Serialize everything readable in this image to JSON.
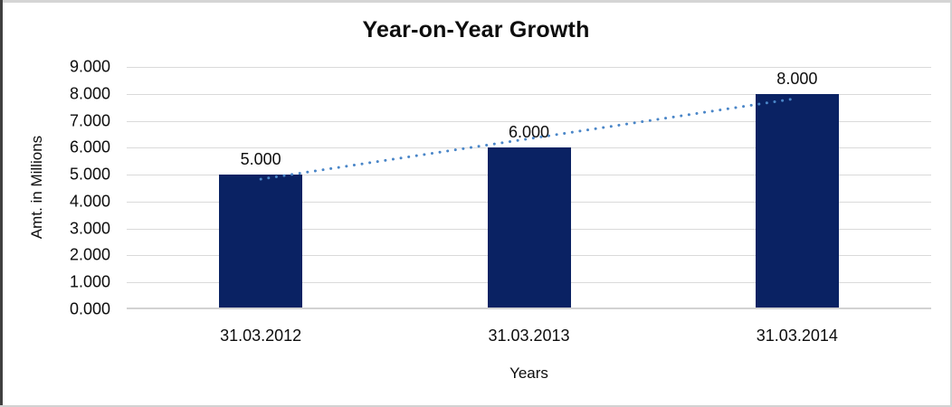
{
  "chart_data": {
    "type": "bar",
    "title": "Year-on-Year Growth",
    "xlabel": "Years",
    "ylabel": "Amt. in Millions",
    "categories": [
      "31.03.2012",
      "31.03.2013",
      "31.03.2014"
    ],
    "values": [
      5,
      6,
      8
    ],
    "value_labels": [
      "5.000",
      "6.000",
      "8.000"
    ],
    "ylim": [
      0,
      9
    ],
    "ytick_step": 1,
    "ytick_labels": [
      "0.000",
      "1.000",
      "2.000",
      "3.000",
      "4.000",
      "5.000",
      "6.000",
      "7.000",
      "8.000",
      "9.000"
    ],
    "grid": true,
    "legend": "none",
    "bar_color": "#0a2263",
    "gridline_color": "#dadada",
    "axis_line_color": "#d2d2d2",
    "text_color": "#0d0d0d",
    "trendline": {
      "type": "linear",
      "style": "dotted",
      "color": "#4a86c8"
    }
  }
}
